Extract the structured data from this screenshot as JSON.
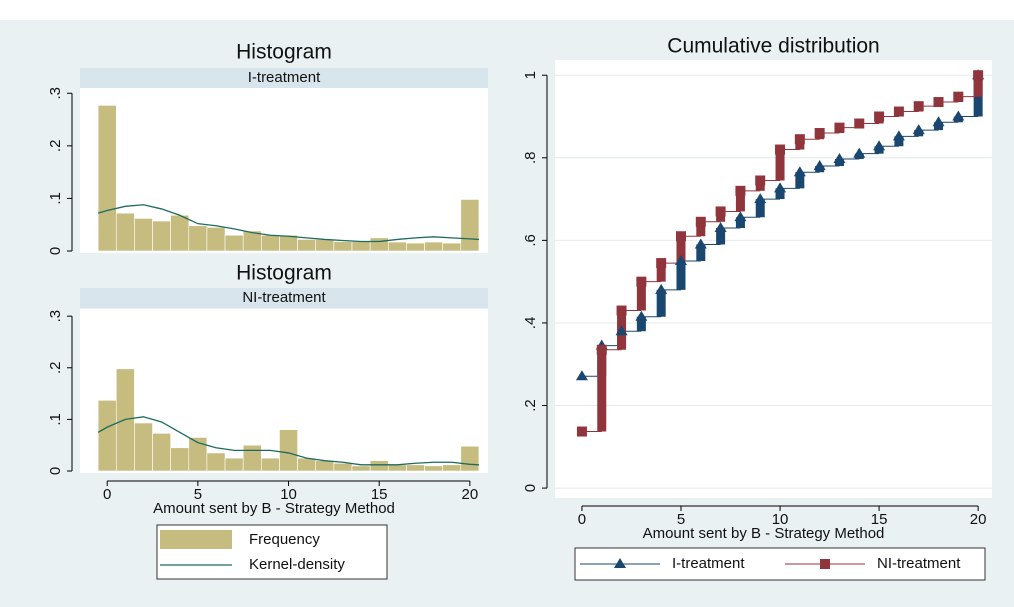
{
  "chart_data": [
    {
      "type": "histogram",
      "title": "Histogram",
      "panel_label": "I-treatment",
      "bins": [
        -0.5,
        0.5,
        1.5,
        2.5,
        3.5,
        4.5,
        5.5,
        6.5,
        7.5,
        8.5,
        9.5,
        10.5,
        11.5,
        12.5,
        13.5,
        14.5,
        15.5,
        16.5,
        17.5,
        18.5,
        19.5,
        20.5
      ],
      "xlim": [
        -1.5,
        21
      ],
      "ylim": [
        0,
        0.31
      ],
      "yticks": [
        0,
        {
          "value": 0.1,
          "label": ".1"
        },
        {
          "value": 0.2,
          "label": ".2"
        },
        {
          "value": 0.3,
          "label": ".3"
        }
      ],
      "series": [
        {
          "color": "#c6bc80",
          "values": [
            0.277,
            0.072,
            0.062,
            0.057,
            0.068,
            0.048,
            0.045,
            0.03,
            0.038,
            0.03,
            0.03,
            0.022,
            0.022,
            0.018,
            0.018,
            0.025,
            0.017,
            0.015,
            0.017,
            0.015,
            0.098
          ]
        },
        {
          "color": "#1f6b5c",
          "x": [
            -0.5,
            0,
            1,
            2,
            3,
            4,
            5,
            6,
            7,
            8,
            9,
            10,
            11,
            12,
            13,
            14,
            15,
            16,
            17,
            18,
            19,
            20,
            20.5
          ],
          "values": [
            0.072,
            0.077,
            0.085,
            0.088,
            0.08,
            0.068,
            0.052,
            0.048,
            0.042,
            0.035,
            0.03,
            0.028,
            0.025,
            0.022,
            0.02,
            0.018,
            0.018,
            0.022,
            0.025,
            0.027,
            0.025,
            0.023,
            0.022
          ]
        }
      ]
    },
    {
      "type": "histogram",
      "title": "Histogram",
      "panel_label": "NI-treatment",
      "x_label": "Amount sent by B - Strategy Method",
      "bins": [
        -0.5,
        0.5,
        1.5,
        2.5,
        3.5,
        4.5,
        5.5,
        6.5,
        7.5,
        8.5,
        9.5,
        10.5,
        11.5,
        12.5,
        13.5,
        14.5,
        15.5,
        16.5,
        17.5,
        18.5,
        19.5,
        20.5
      ],
      "xlim": [
        -1.5,
        21
      ],
      "ylim": [
        0,
        0.31
      ],
      "xticks": [
        0,
        5,
        10,
        15,
        20
      ],
      "yticks": [
        0,
        {
          "value": 0.1,
          "label": ".1"
        },
        {
          "value": 0.2,
          "label": ".2"
        },
        {
          "value": 0.3,
          "label": ".3"
        }
      ],
      "series": [
        {
          "name": "Frequency",
          "color": "#c6bc80",
          "values": [
            0.137,
            0.198,
            0.093,
            0.073,
            0.045,
            0.065,
            0.035,
            0.025,
            0.05,
            0.025,
            0.08,
            0.025,
            0.02,
            0.015,
            0.01,
            0.02,
            0.012,
            0.012,
            0.01,
            0.012,
            0.048
          ]
        },
        {
          "name": "Kernel-density",
          "color": "#1f6b5c",
          "x": [
            -0.5,
            0,
            1,
            2,
            3,
            4,
            5,
            6,
            7,
            8,
            9,
            10,
            11,
            12,
            13,
            14,
            15,
            16,
            17,
            18,
            19,
            20,
            20.5
          ],
          "values": [
            0.075,
            0.085,
            0.1,
            0.105,
            0.095,
            0.075,
            0.055,
            0.045,
            0.04,
            0.04,
            0.04,
            0.035,
            0.025,
            0.02,
            0.017,
            0.012,
            0.012,
            0.012,
            0.015,
            0.017,
            0.017,
            0.013,
            0.012
          ]
        }
      ]
    },
    {
      "type": "step",
      "title": "Cumulative distribution",
      "x_label": "Amount sent by B - Strategy Method",
      "x": [
        0,
        1,
        2,
        3,
        4,
        5,
        6,
        7,
        8,
        9,
        10,
        11,
        12,
        13,
        14,
        15,
        16,
        17,
        18,
        19,
        20
      ],
      "xlim": [
        -1.36,
        20.7
      ],
      "ylim": [
        -0.024,
        1.032
      ],
      "xticks": [
        0,
        5,
        10,
        15,
        20
      ],
      "yticks": [
        0,
        {
          "value": 0.2,
          "label": ".2"
        },
        {
          "value": 0.4,
          "label": ".4"
        },
        {
          "value": 0.6,
          "label": ".6"
        },
        {
          "value": 0.8,
          "label": ".8"
        },
        1
      ],
      "grid": true,
      "series": [
        {
          "name": "I-treatment",
          "color": "#1a476f",
          "marker": "triangle",
          "values": [
            0.271,
            0.345,
            0.38,
            0.415,
            0.48,
            0.55,
            0.59,
            0.63,
            0.656,
            0.7,
            0.726,
            0.765,
            0.78,
            0.797,
            0.81,
            0.828,
            0.852,
            0.867,
            0.886,
            0.9,
            1
          ]
        },
        {
          "name": "NI-treatment",
          "color": "#90353b",
          "marker": "square",
          "values": [
            0.137,
            0.335,
            0.43,
            0.5,
            0.545,
            0.61,
            0.645,
            0.67,
            0.72,
            0.745,
            0.82,
            0.845,
            0.86,
            0.873,
            0.883,
            0.9,
            0.912,
            0.925,
            0.935,
            0.948,
            1
          ]
        }
      ]
    }
  ]
}
